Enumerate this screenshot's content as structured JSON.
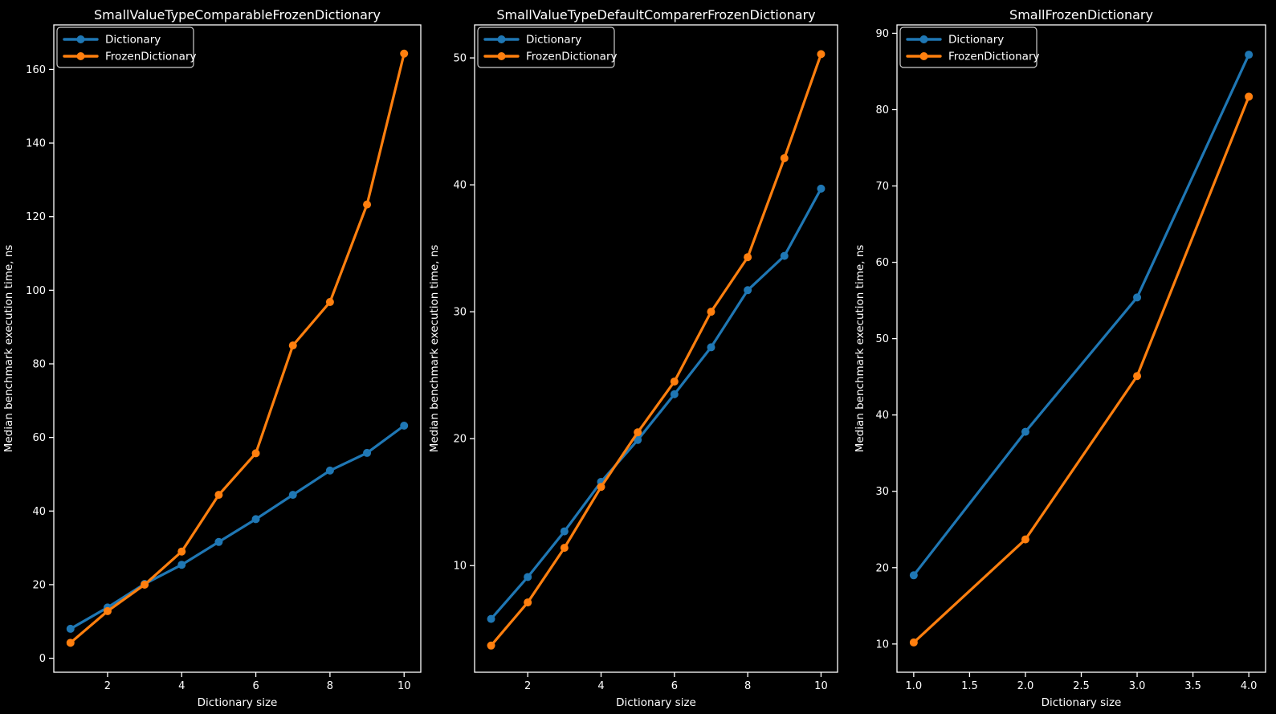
{
  "style": {
    "background": "#000000",
    "text_color": "#ffffff",
    "spine_color": "#ffffff",
    "legend_border_color": "#cccccc",
    "series_blue": "#1f77b4",
    "series_orange": "#ff7f0e"
  },
  "chart_data": [
    {
      "type": "line",
      "title": "SmallValueTypeComparableFrozenDictionary",
      "xlabel": "Dictionary size",
      "ylabel": "Median benchmark execution time, ns",
      "x": [
        1,
        2,
        3,
        4,
        5,
        6,
        7,
        8,
        9,
        10
      ],
      "series": [
        {
          "name": "Dictionary",
          "color": "#1f77b4",
          "values": [
            8.0,
            13.8,
            20.2,
            25.4,
            31.6,
            37.8,
            44.4,
            51.0,
            55.8,
            63.2
          ]
        },
        {
          "name": "FrozenDictionary",
          "color": "#ff7f0e",
          "values": [
            4.2,
            12.8,
            20.0,
            29.0,
            44.4,
            55.7,
            85.0,
            96.8,
            123.3,
            164.3
          ]
        }
      ],
      "xticks": [
        2,
        4,
        6,
        8,
        10
      ],
      "xtick_labels": [
        "2",
        "4",
        "6",
        "8",
        "10"
      ],
      "yticks": [
        0,
        20,
        40,
        60,
        80,
        100,
        120,
        140,
        160
      ],
      "ytick_labels": [
        "0",
        "20",
        "40",
        "60",
        "80",
        "100",
        "120",
        "140",
        "160"
      ],
      "xlim": [
        0.55,
        10.45
      ],
      "ylim": [
        -3.8,
        172.1
      ],
      "grid": false,
      "legend": {
        "position": "upper-left",
        "entries": [
          "Dictionary",
          "FrozenDictionary"
        ]
      }
    },
    {
      "type": "line",
      "title": "SmallValueTypeDefaultComparerFrozenDictionary",
      "xlabel": "Dictionary size",
      "ylabel": "Median benchmark execution time, ns",
      "x": [
        1,
        2,
        3,
        4,
        5,
        6,
        7,
        8,
        9,
        10
      ],
      "series": [
        {
          "name": "Dictionary",
          "color": "#1f77b4",
          "values": [
            5.8,
            9.1,
            12.7,
            16.6,
            19.9,
            23.5,
            27.2,
            31.7,
            34.4,
            39.7
          ]
        },
        {
          "name": "FrozenDictionary",
          "color": "#ff7f0e",
          "values": [
            3.7,
            7.1,
            11.4,
            16.2,
            20.5,
            24.5,
            30.0,
            34.3,
            42.1,
            50.3
          ]
        }
      ],
      "xticks": [
        2,
        4,
        6,
        8,
        10
      ],
      "xtick_labels": [
        "2",
        "4",
        "6",
        "8",
        "10"
      ],
      "yticks": [
        10,
        20,
        30,
        40,
        50
      ],
      "ytick_labels": [
        "10",
        "20",
        "30",
        "40",
        "50"
      ],
      "xlim": [
        0.55,
        10.45
      ],
      "ylim": [
        1.6,
        52.6
      ],
      "grid": false,
      "legend": {
        "position": "upper-left",
        "entries": [
          "Dictionary",
          "FrozenDictionary"
        ]
      }
    },
    {
      "type": "line",
      "title": "SmallFrozenDictionary",
      "xlabel": "Dictionary size",
      "ylabel": "Median benchmark execution time, ns",
      "x": [
        1,
        2,
        3,
        4
      ],
      "series": [
        {
          "name": "Dictionary",
          "color": "#1f77b4",
          "values": [
            19.0,
            37.8,
            55.4,
            87.2
          ]
        },
        {
          "name": "FrozenDictionary",
          "color": "#ff7f0e",
          "values": [
            10.2,
            23.7,
            45.1,
            81.7
          ]
        }
      ],
      "xticks": [
        1,
        1.5,
        2,
        2.5,
        3,
        3.5,
        4
      ],
      "xtick_labels": [
        "1.0",
        "1.5",
        "2.0",
        "2.5",
        "3.0",
        "3.5",
        "4.0"
      ],
      "yticks": [
        10,
        20,
        30,
        40,
        50,
        60,
        70,
        80,
        90
      ],
      "ytick_labels": [
        "10",
        "20",
        "30",
        "40",
        "50",
        "60",
        "70",
        "80",
        "90"
      ],
      "xlim": [
        0.85,
        4.15
      ],
      "ylim": [
        6.3,
        91.1
      ],
      "grid": false,
      "legend": {
        "position": "upper-left",
        "entries": [
          "Dictionary",
          "FrozenDictionary"
        ]
      }
    }
  ]
}
